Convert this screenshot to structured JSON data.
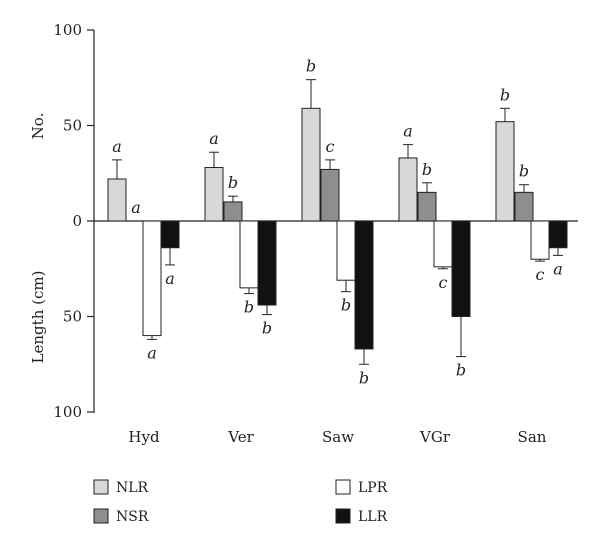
{
  "chart_data": {
    "type": "bar",
    "categories": [
      "Hyd",
      "Ver",
      "Saw",
      "VGr",
      "San"
    ],
    "ylabel_upper": "No.",
    "ylabel_lower": "Length (cm)",
    "yticks": [
      "100",
      "50",
      "0",
      "50",
      "100"
    ],
    "ylim": [
      -100,
      100
    ],
    "series": [
      {
        "name": "NLR",
        "direction": "up",
        "color": "#d8d8d8",
        "values": [
          22,
          28,
          59,
          33,
          52
        ],
        "errors": [
          10,
          8,
          15,
          7,
          7
        ],
        "labels": [
          "a",
          "a",
          "b",
          "a",
          "b"
        ]
      },
      {
        "name": "NSR",
        "direction": "up",
        "color": "#8e8e8e",
        "values": [
          0,
          10,
          27,
          15,
          15
        ],
        "errors": [
          0,
          3,
          5,
          5,
          4
        ],
        "labels": [
          "a",
          "b",
          "c",
          "b",
          "b"
        ]
      },
      {
        "name": "LPR",
        "direction": "down",
        "color": "#ffffff",
        "values": [
          60,
          35,
          31,
          24,
          20
        ],
        "errors": [
          2,
          3,
          6,
          1,
          1
        ],
        "labels": [
          "a",
          "b",
          "b",
          "c",
          "c"
        ]
      },
      {
        "name": "LLR",
        "direction": "down",
        "color": "#111111",
        "values": [
          14,
          44,
          67,
          50,
          14
        ],
        "errors": [
          9,
          5,
          8,
          21,
          4
        ],
        "labels": [
          "a",
          "b",
          "b",
          "b",
          "a"
        ]
      }
    ],
    "legend": [
      {
        "name": "NLR",
        "color": "#d8d8d8"
      },
      {
        "name": "NSR",
        "color": "#8e8e8e"
      },
      {
        "name": "LPR",
        "color": "#ffffff"
      },
      {
        "name": "LLR",
        "color": "#111111"
      }
    ]
  }
}
